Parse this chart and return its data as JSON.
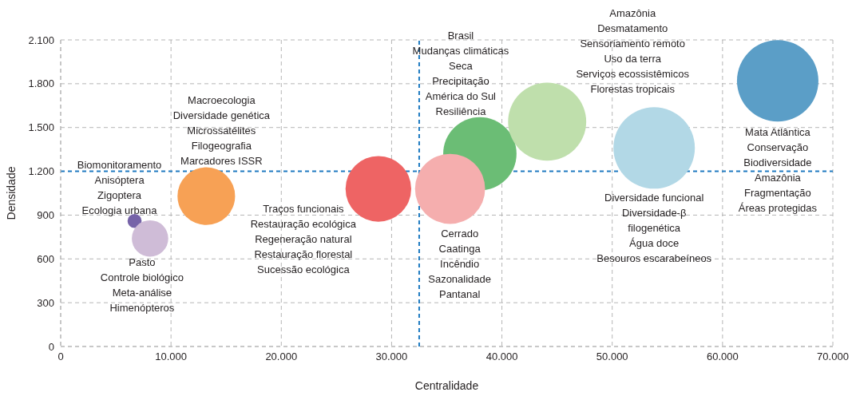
{
  "chart_data": {
    "type": "bubble",
    "xlabel": "Centralidade",
    "ylabel": "Densidade",
    "x": [
      6700,
      8100,
      13200,
      28800,
      38000,
      35300,
      44100,
      53800,
      65000
    ],
    "values": [
      860,
      740,
      1030,
      1080,
      1320,
      1080,
      1540,
      1360,
      1820
    ],
    "sizes": [
      0.03,
      0.2,
      0.5,
      0.65,
      0.81,
      0.74,
      0.92,
      1,
      1
    ],
    "colors": [
      "#7663a8",
      "#cfbcd7",
      "#f7a155",
      "#ee6464",
      "#6bbd75",
      "#f5aeae",
      "#bfdfac",
      "#b2d8e6",
      "#5b9ec7"
    ],
    "xlim": [
      0,
      70000
    ],
    "xticks": [
      0,
      {
        "value": 10000,
        "label": "10.000"
      },
      {
        "value": 20000,
        "label": "20.000"
      },
      {
        "value": 30000,
        "label": "30.000"
      },
      {
        "value": 40000,
        "label": "40.000"
      },
      {
        "value": 50000,
        "label": "50.000"
      },
      {
        "value": 60000,
        "label": "60.000"
      },
      {
        "value": 70000,
        "label": "70.000"
      }
    ],
    "ylim": [
      0,
      2100
    ],
    "yticks": [
      0,
      300,
      600,
      900,
      {
        "value": 1200,
        "label": "1.200"
      },
      {
        "value": 1500,
        "label": "1.500"
      },
      {
        "value": 1800,
        "label": "1.800"
      },
      {
        "value": 2100,
        "label": "2.100"
      }
    ],
    "grid": true,
    "marker": "circle",
    "ref_lines": [
      {
        "axis": "x",
        "value": 32500,
        "color": "#1f7bc1",
        "line_style": "dashed"
      },
      {
        "axis": "y",
        "value": 1200,
        "color": "#1f7bc1",
        "line_style": "dashed"
      }
    ],
    "annotations": [
      "Biomonitoramento\nAnisóptera\nZigoptera\nEcologia urbana",
      "Pasto\nControle biológico\nMeta-análise\nHimenópteros",
      "Macroecologia\nDiversidade genética\nMicrossatélites\nFilogeografia\nMarcadores ISSR",
      "Traços funcionais\nRestauração ecológica\nRegeneração natural\nRestauração florestal\nSucessão ecológica",
      "Brasil\nMudanças climáticas\nSeca\nPrecipitação\nAmérica do Sul\nResiliência",
      "Cerrado\nCaatinga\nIncêndio\nSazonalidade\nPantanal",
      "Amazônia\nDesmatamento\nSensoriamento remoto\nUso da terra\nServiços ecossistêmicos\nFlorestas tropicais",
      "Diversidade funcional\nDiversidade-β\nfilogenética\nÁgua doce\nBesouros escarabeíneos",
      "Mata Atlântica\nConservação\nBiodiversidade\nAmazônia\nFragmentação\nÁreas protegidas"
    ]
  }
}
